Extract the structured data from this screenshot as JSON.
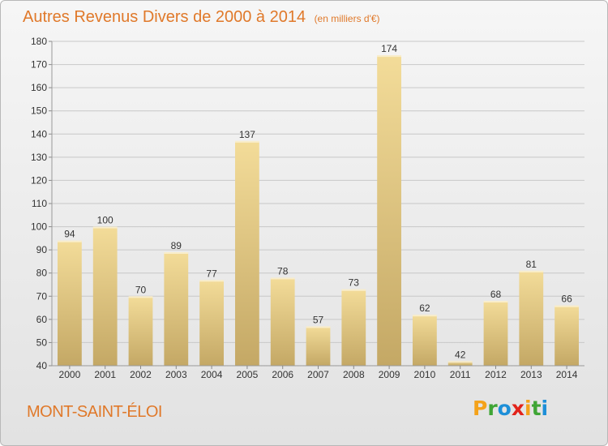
{
  "header": {
    "title": "Autres Revenus Divers de 2000 à 2014",
    "unit_note": "(en milliers d'€)"
  },
  "footer": {
    "commune": "MONT-SAINT-ÉLOI",
    "logo_letters": [
      "P",
      "r",
      "o",
      "x",
      "i",
      "t",
      "i"
    ],
    "logo_colors": [
      "#f4a21a",
      "#3fa535",
      "#1d8fd8",
      "#e2231a",
      "#f4a21a",
      "#3fa535",
      "#1d8fd8"
    ]
  },
  "colors": {
    "accent": "#e0792a",
    "bar_light": "#f3dc99",
    "bar_dark": "#c4a865",
    "grid": "#c8c8c8",
    "text": "#333333"
  },
  "chart_data": {
    "type": "bar",
    "categories": [
      "2000",
      "2001",
      "2002",
      "2003",
      "2004",
      "2005",
      "2006",
      "2007",
      "2008",
      "2009",
      "2010",
      "2011",
      "2012",
      "2013",
      "2014"
    ],
    "values": [
      94,
      100,
      70,
      89,
      77,
      137,
      78,
      57,
      73,
      174,
      62,
      42,
      68,
      81,
      66
    ],
    "ylim": [
      40,
      180
    ],
    "yticks": [
      40,
      50,
      60,
      70,
      80,
      90,
      100,
      110,
      120,
      130,
      140,
      150,
      160,
      170,
      180
    ],
    "grid": true,
    "data_labels": true
  }
}
